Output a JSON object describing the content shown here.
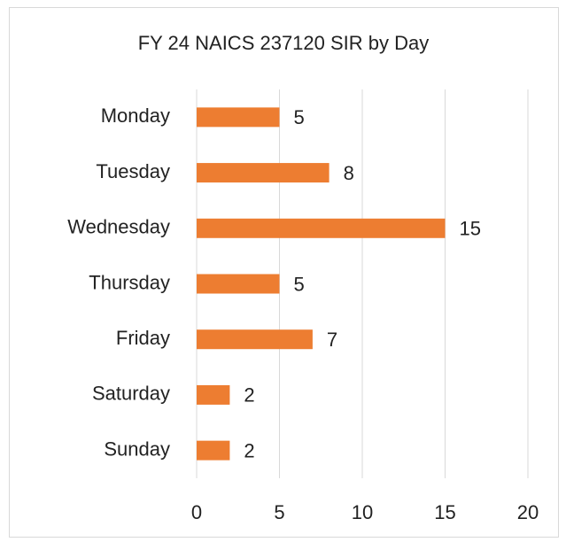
{
  "chart_data": {
    "type": "bar",
    "orientation": "horizontal",
    "title": "FY 24 NAICS 237120 SIR by Day",
    "categories": [
      "Monday",
      "Tuesday",
      "Wednesday",
      "Thursday",
      "Friday",
      "Saturday",
      "Sunday"
    ],
    "values": [
      5,
      8,
      15,
      5,
      7,
      2,
      2
    ],
    "color": "#ed7d31",
    "xlim": [
      0,
      20
    ],
    "xticks": [
      0,
      5,
      10,
      15,
      20
    ],
    "grid": true,
    "data_labels": true
  }
}
